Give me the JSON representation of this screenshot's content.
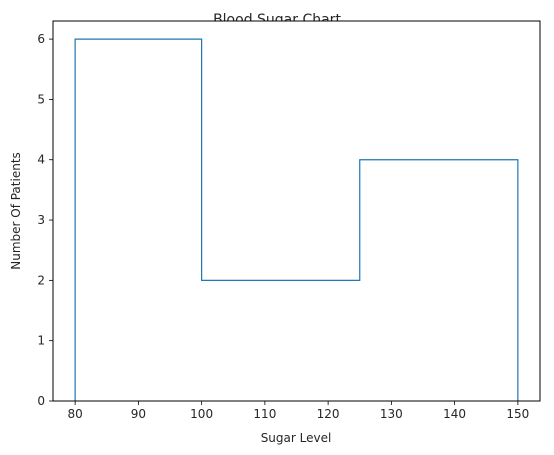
{
  "chart_data": {
    "type": "histogram",
    "title": "Blood Sugar Chart",
    "xlabel": "Sugar Level",
    "ylabel": "Number Of Patients",
    "bins": [
      {
        "start": 80,
        "end": 100,
        "count": 6
      },
      {
        "start": 100,
        "end": 125,
        "count": 2
      },
      {
        "start": 125,
        "end": 150,
        "count": 4
      }
    ],
    "xlim": [
      76.5,
      153.5
    ],
    "ylim": [
      0,
      6.3
    ],
    "xticks": [
      80,
      90,
      100,
      110,
      120,
      130,
      140,
      150
    ],
    "yticks": [
      0,
      1,
      2,
      3,
      4,
      5,
      6
    ],
    "histtype": "step",
    "line_color": "#1f77b4",
    "grid": false,
    "legend": "none"
  }
}
